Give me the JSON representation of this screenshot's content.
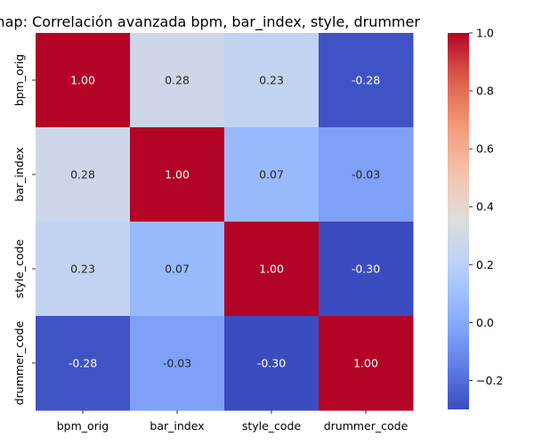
{
  "chart_data": {
    "type": "heatmap",
    "title": "Heatmap: Correlación avanzada bpm, bar_index, style, drummer",
    "x_labels": [
      "bpm_orig",
      "bar_index",
      "style_code",
      "drummer_code"
    ],
    "y_labels": [
      "bpm_orig",
      "bar_index",
      "style_code",
      "drummer_code"
    ],
    "values": [
      [
        1.0,
        0.28,
        0.23,
        -0.28
      ],
      [
        0.28,
        1.0,
        0.07,
        -0.03
      ],
      [
        0.23,
        0.07,
        1.0,
        -0.3
      ],
      [
        -0.28,
        -0.03,
        -0.3,
        1.0
      ]
    ],
    "value_labels": [
      [
        "1.00",
        "0.28",
        "0.23",
        "-0.28"
      ],
      [
        "0.28",
        "1.00",
        "0.07",
        "-0.03"
      ],
      [
        "0.23",
        "0.07",
        "1.00",
        "-0.30"
      ],
      [
        "-0.28",
        "-0.03",
        "-0.30",
        "1.00"
      ]
    ],
    "colormap": "coolwarm",
    "vmin": -0.3,
    "vmax": 1.0,
    "colorbar_ticks": [
      -0.2,
      0.0,
      0.2,
      0.4,
      0.6,
      0.8,
      1.0
    ],
    "colorbar_tick_labels": [
      "−0.2",
      "0.0",
      "0.2",
      "0.4",
      "0.6",
      "0.8",
      "1.0"
    ]
  }
}
